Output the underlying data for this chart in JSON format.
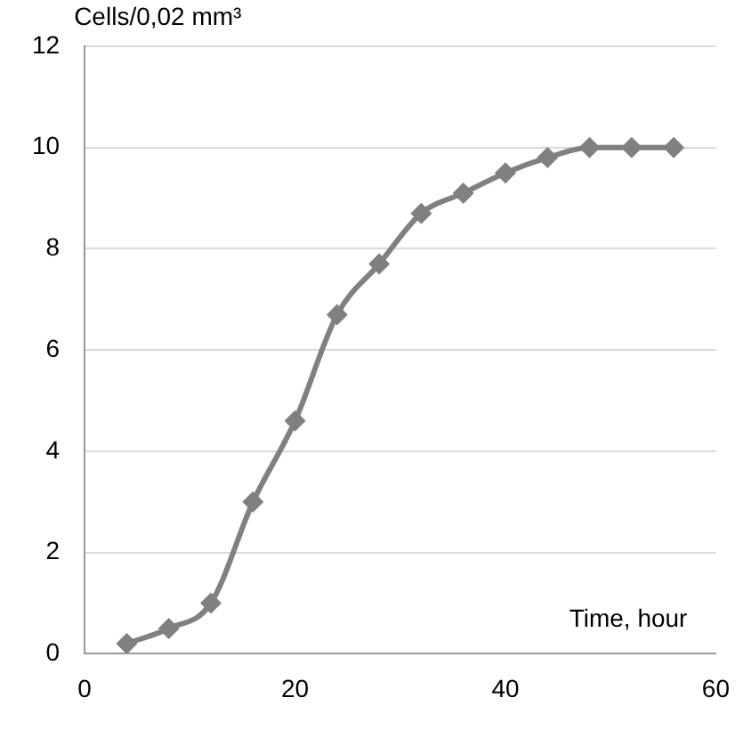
{
  "chart_data": {
    "type": "line",
    "xlabel": "Time, hour",
    "ylabel": "Cells/0,02 mm³",
    "x": [
      4,
      8,
      12,
      16,
      20,
      24,
      28,
      32,
      36,
      40,
      44,
      48,
      52,
      56
    ],
    "series": [
      {
        "color": "#808080",
        "values": [
          0.2,
          0.5,
          1.0,
          3.0,
          4.6,
          6.7,
          7.7,
          8.7,
          9.1,
          9.5,
          9.8,
          10.0,
          10.0,
          10.0
        ]
      }
    ],
    "xlim": [
      0,
      60
    ],
    "xticks": [
      0,
      20,
      40,
      60
    ],
    "ylim": [
      0,
      12
    ],
    "yticks": [
      0,
      2,
      4,
      6,
      8,
      10,
      12
    ],
    "grid": "y",
    "legend": false,
    "marker": "diamond",
    "line_style": "solid"
  }
}
